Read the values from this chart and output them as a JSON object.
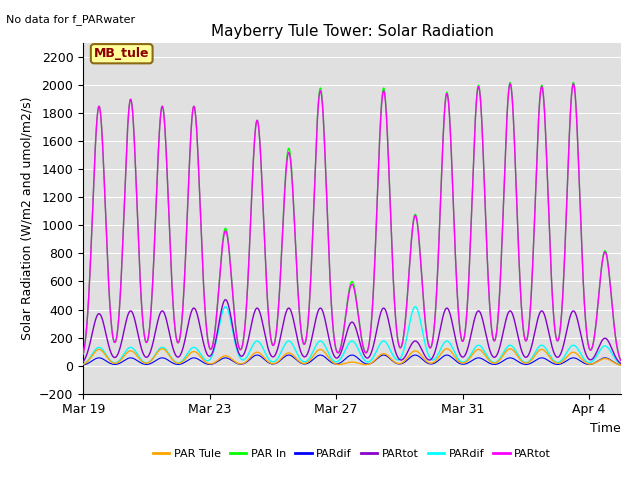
{
  "title": "Mayberry Tule Tower: Solar Radiation",
  "subtitle": "No data for f_PARwater",
  "xlabel": "Time",
  "ylabel": "Solar Radiation (W/m2 and umol/m2/s)",
  "ylim": [
    -200,
    2300
  ],
  "yticks": [
    -200,
    0,
    200,
    400,
    600,
    800,
    1000,
    1200,
    1400,
    1600,
    1800,
    2000,
    2200
  ],
  "bg_color": "#e0e0e0",
  "legend_labels": [
    "PAR Tule",
    "PAR In",
    "PARdif",
    "PARtot",
    "PARdif",
    "PARtot"
  ],
  "legend_colors": [
    "#ffa500",
    "#00ff00",
    "#0000ff",
    "#8800cc",
    "#00ffff",
    "#ff00ff"
  ],
  "annotation_text": "MB_tule",
  "annotation_color": "#8b0000",
  "annotation_bg": "#ffff99",
  "n_days": 17,
  "x_tick_labels": [
    "Mar 19",
    "Mar 23",
    "Mar 27",
    "Mar 31",
    "Apr 4"
  ],
  "x_tick_positions": [
    0,
    4,
    8,
    12,
    16
  ]
}
